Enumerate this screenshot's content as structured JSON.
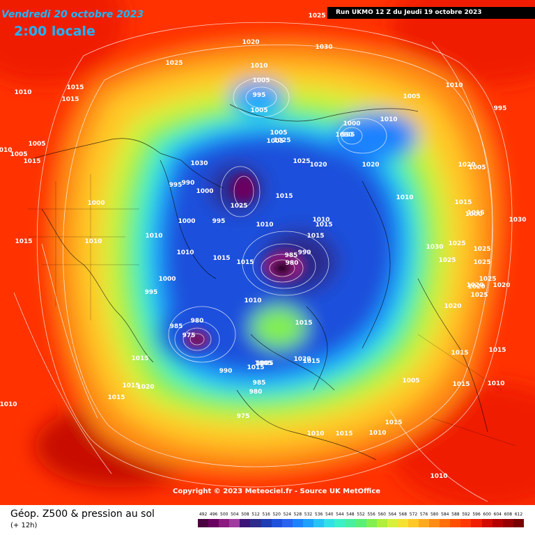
{
  "header": {
    "date": "Vendredi 20 octobre 2023",
    "local_time": "2:00 locale",
    "run_info": "Run UKMO 12 Z du Jeudi 19 octobre 2023"
  },
  "copyright": "Copyright © 2023 Meteociel.fr - Source UK MetOffice",
  "legend": {
    "title": "Géop. Z500 & pression au sol",
    "subtitle": "(+ 12h)",
    "values": [
      "492",
      "496",
      "500",
      "504",
      "508",
      "512",
      "516",
      "520",
      "524",
      "528",
      "532",
      "536",
      "540",
      "544",
      "548",
      "552",
      "556",
      "560",
      "564",
      "568",
      "572",
      "576",
      "580",
      "584",
      "588",
      "592",
      "596",
      "600",
      "604",
      "608",
      "612"
    ],
    "colors": [
      "#4a0040",
      "#6a0060",
      "#8c1a80",
      "#a03ca0",
      "#3c1478",
      "#2c2c8c",
      "#1e3cb4",
      "#1e50dc",
      "#2864f0",
      "#1e82ff",
      "#1ea0ff",
      "#28c3f5",
      "#32e1e6",
      "#3cf0c8",
      "#46f0a0",
      "#5af078",
      "#82f050",
      "#aff03c",
      "#d7f03c",
      "#f5e132",
      "#ffc828",
      "#ffaa1e",
      "#ff8c14",
      "#ff700a",
      "#ff5000",
      "#ff3700",
      "#f01e00",
      "#d20a00",
      "#b40000",
      "#960000",
      "#780000"
    ]
  },
  "pressure_labels": [
    "1025",
    "1030",
    "1020",
    "1025",
    "1010",
    "1005",
    "995",
    "1005",
    "1010",
    "1015",
    "1015",
    "1005",
    "1005",
    "1010",
    "1005",
    "1015",
    "1005",
    "1000",
    "995",
    "1030",
    "1010",
    "1010",
    "995",
    "1005",
    "1025",
    "1025",
    "1020",
    "1020",
    "1020",
    "1005",
    "1030",
    "995",
    "990",
    "1000",
    "1025",
    "1015",
    "1010",
    "1000",
    "1015",
    "1010",
    "1030",
    "1015",
    "1000",
    "1000",
    "995",
    "1015",
    "1010",
    "1010",
    "1010",
    "1015",
    "1015",
    "985",
    "990",
    "980",
    "1030",
    "1025",
    "1025",
    "1025",
    "1025",
    "1025",
    "1020",
    "1000",
    "1010",
    "995",
    "1015",
    "1015",
    "1010",
    "1020",
    "1025",
    "1020",
    "980",
    "985",
    "975",
    "1015",
    "1015",
    "1015",
    "990",
    "1005",
    "1005",
    "985",
    "980",
    "975",
    "1020",
    "1020",
    "1015",
    "1015",
    "1015",
    "1015",
    "1010",
    "1015",
    "1020",
    "1015",
    "1005",
    "1015",
    "1015",
    "1010",
    "1010",
    "1010",
    "1010"
  ]
}
